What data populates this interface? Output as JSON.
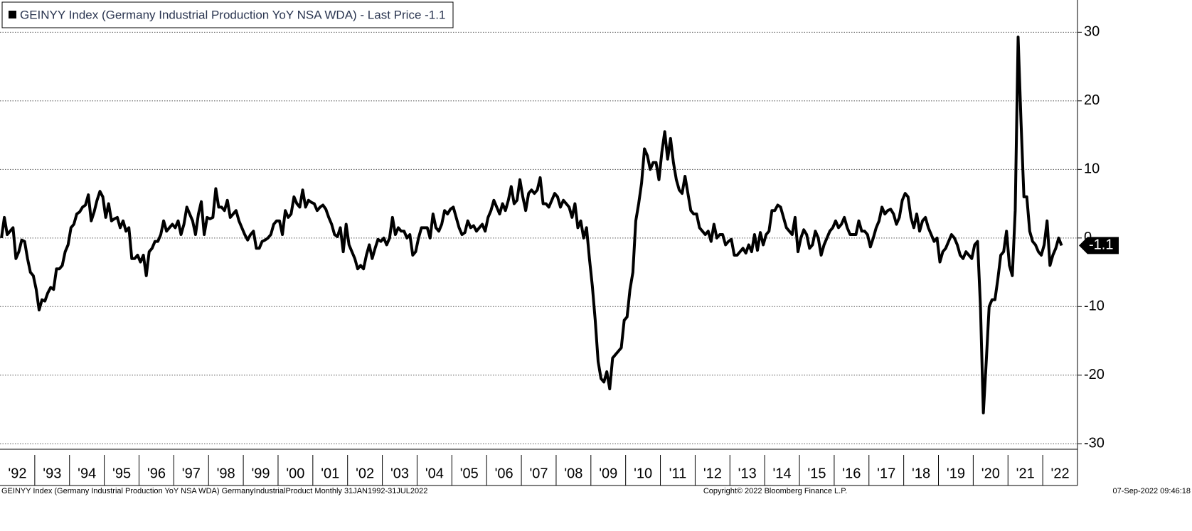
{
  "chart_data": {
    "type": "line",
    "title": "GEINYY Index (Germany Industrial Production YoY NSA WDA) - Last Price -1.1",
    "footer_left": "GEINYY Index (Germany Industrial Production YoY NSA WDA) GermanyIndustrialProduct  Monthly 31JAN1992-31JUL2022",
    "footer_center": "Copyright© 2022 Bloomberg Finance L.P.",
    "footer_right": "07-Sep-2022 09:46:18",
    "categories": [
      "'92",
      null,
      null,
      null,
      null,
      null,
      null,
      null,
      null,
      null,
      null,
      null,
      "'93",
      null,
      null,
      null,
      null,
      null,
      null,
      null,
      null,
      null,
      null,
      null,
      "'94",
      null,
      null,
      null,
      null,
      null,
      null,
      null,
      null,
      null,
      null,
      null,
      "'95",
      null,
      null,
      null,
      null,
      null,
      null,
      null,
      null,
      null,
      null,
      null,
      "'96",
      null,
      null,
      null,
      null,
      null,
      null,
      null,
      null,
      null,
      null,
      null,
      "'97",
      null,
      null,
      null,
      null,
      null,
      null,
      null,
      null,
      null,
      null,
      null,
      "'98",
      null,
      null,
      null,
      null,
      null,
      null,
      null,
      null,
      null,
      null,
      null,
      "'99",
      null,
      null,
      null,
      null,
      null,
      null,
      null,
      null,
      null,
      null,
      null,
      "'00",
      null,
      null,
      null,
      null,
      null,
      null,
      null,
      null,
      null,
      null,
      null,
      "'01",
      null,
      null,
      null,
      null,
      null,
      null,
      null,
      null,
      null,
      null,
      null,
      "'02",
      null,
      null,
      null,
      null,
      null,
      null,
      null,
      null,
      null,
      null,
      null,
      "'03",
      null,
      null,
      null,
      null,
      null,
      null,
      null,
      null,
      null,
      null,
      null,
      "'04",
      null,
      null,
      null,
      null,
      null,
      null,
      null,
      null,
      null,
      null,
      null,
      "'05",
      null,
      null,
      null,
      null,
      null,
      null,
      null,
      null,
      null,
      null,
      null,
      "'06",
      null,
      null,
      null,
      null,
      null,
      null,
      null,
      null,
      null,
      null,
      null,
      "'07",
      null,
      null,
      null,
      null,
      null,
      null,
      null,
      null,
      null,
      null,
      null,
      "'08",
      null,
      null,
      null,
      null,
      null,
      null,
      null,
      null,
      null,
      null,
      null,
      "'09",
      null,
      null,
      null,
      null,
      null,
      null,
      null,
      null,
      null,
      null,
      null,
      "'10",
      null,
      null,
      null,
      null,
      null,
      null,
      null,
      null,
      null,
      null,
      null,
      "'11",
      null,
      null,
      null,
      null,
      null,
      null,
      null,
      null,
      null,
      null,
      null,
      "'12",
      null,
      null,
      null,
      null,
      null,
      null,
      null,
      null,
      null,
      null,
      null,
      "'13",
      null,
      null,
      null,
      null,
      null,
      null,
      null,
      null,
      null,
      null,
      null,
      "'14",
      null,
      null,
      null,
      null,
      null,
      null,
      null,
      null,
      null,
      null,
      null,
      "'15",
      null,
      null,
      null,
      null,
      null,
      null,
      null,
      null,
      null,
      null,
      null,
      "'16",
      null,
      null,
      null,
      null,
      null,
      null,
      null,
      null,
      null,
      null,
      null,
      "'17",
      null,
      null,
      null,
      null,
      null,
      null,
      null,
      null,
      null,
      null,
      null,
      "'18",
      null,
      null,
      null,
      null,
      null,
      null,
      null,
      null,
      null,
      null,
      null,
      "'19",
      null,
      null,
      null,
      null,
      null,
      null,
      null,
      null,
      null,
      null,
      null,
      "'20",
      null,
      null,
      null,
      null,
      null,
      null,
      null,
      null,
      null,
      null,
      null,
      "'21",
      null,
      null,
      null,
      null,
      null,
      null,
      null,
      null,
      null,
      null,
      null,
      "'22",
      null,
      null,
      null,
      null,
      null,
      null
    ],
    "series": [
      {
        "name": "GEINYY Index (Germany Industrial Production YoY NSA WDA) - Last Price -1.1",
        "color": "#000000",
        "values": [
          0,
          3,
          0.5,
          1,
          1.5,
          -3,
          -2,
          -0.3,
          -0.5,
          -3,
          -5,
          -5.5,
          -7.5,
          -10.5,
          -9,
          -9.2,
          -8,
          -7.2,
          -7.5,
          -4.5,
          -4.5,
          -4,
          -2,
          -1,
          1.5,
          2,
          3.5,
          3.8,
          4.5,
          4.8,
          6.3,
          2.5,
          3.8,
          5.5,
          6.8,
          6,
          3,
          5,
          2.5,
          2.8,
          3,
          1.5,
          2.5,
          1,
          1.5,
          -3,
          -3,
          -2.5,
          -3.5,
          -2.5,
          -5.5,
          -2,
          -1.5,
          -0.5,
          -0.5,
          0.5,
          2.5,
          1,
          1.5,
          2,
          1.5,
          2.5,
          0.5,
          2,
          4.5,
          3.5,
          2.5,
          0.5,
          3.5,
          5.3,
          0.5,
          3,
          2.8,
          3,
          7.2,
          4.5,
          4.5,
          4,
          5.5,
          3,
          3.5,
          4,
          2.5,
          1.5,
          0.5,
          -0.3,
          0.5,
          1,
          -1.5,
          -1.5,
          -0.5,
          -0.3,
          0,
          0.5,
          2,
          2.5,
          2.5,
          0.5,
          4,
          3,
          3.5,
          6,
          5,
          4.5,
          7,
          4.5,
          5.5,
          5.2,
          5,
          4,
          4.5,
          4.8,
          4.2,
          3,
          2,
          0.5,
          0.2,
          1.5,
          -2,
          2,
          -1,
          -2,
          -3,
          -4.5,
          -4,
          -4.5,
          -2.5,
          -1,
          -3,
          -1.5,
          -0.2,
          -0.5,
          0,
          -1,
          0,
          3,
          0.5,
          1.5,
          1,
          1,
          0,
          0.5,
          -2.5,
          -2,
          0,
          1.5,
          1.5,
          1.5,
          0,
          3.5,
          1.5,
          1,
          2,
          4,
          3.5,
          4.2,
          4.5,
          3,
          1.5,
          0.5,
          0.8,
          2.5,
          1.5,
          1.8,
          1,
          1.5,
          2,
          1,
          3,
          4,
          5.5,
          4.5,
          3.5,
          5,
          4,
          5.5,
          7.5,
          5,
          5.5,
          8.5,
          6,
          4,
          6.5,
          7,
          6.5,
          7,
          8.8,
          5,
          5,
          4.5,
          5.5,
          6.5,
          6,
          4.5,
          5.5,
          5,
          4.5,
          3,
          5,
          1.5,
          2.5,
          0,
          1.5,
          -3,
          -7,
          -12,
          -18,
          -20.5,
          -21,
          -19.5,
          -22,
          -17.5,
          -17,
          -16.5,
          -16,
          -12,
          -11.5,
          -7.5,
          -5,
          2.5,
          5,
          8,
          13,
          12,
          10,
          11,
          11,
          8.5,
          12.5,
          15.5,
          11.5,
          14.5,
          11,
          8.5,
          7,
          6.5,
          9,
          6.5,
          4,
          3.5,
          3.5,
          1.5,
          1,
          0.5,
          1,
          -0.5,
          2,
          0,
          0.5,
          0.5,
          -1,
          -0.5,
          -0.2,
          -2.5,
          -2.5,
          -2,
          -1.5,
          -2.2,
          -1,
          -2,
          0.5,
          -1.8,
          0.8,
          -1,
          0.5,
          1,
          4,
          4,
          4.8,
          4.5,
          3,
          1.5,
          1,
          0.5,
          3,
          -2,
          0,
          1.2,
          0.5,
          -1.5,
          -1,
          1,
          0,
          -2.5,
          -1,
          0,
          1,
          1.5,
          2.5,
          1.5,
          2,
          3,
          1.5,
          0.5,
          0.5,
          0.5,
          2.5,
          1,
          1,
          0.5,
          -1.3,
          0,
          1.5,
          2.5,
          4.5,
          3.5,
          4,
          4.2,
          3.5,
          2,
          3,
          5.5,
          6.5,
          6,
          3,
          1.5,
          3.5,
          1,
          2.5,
          3,
          1.5,
          0.5,
          -0.5,
          0,
          -3.5,
          -2,
          -1.5,
          -0.5,
          0.5,
          0,
          -1,
          -2.5,
          -3,
          -2,
          -2.5,
          -3,
          -1,
          -0.5,
          -10,
          -25.5,
          -18,
          -10,
          -9,
          -9,
          -6,
          -2.5,
          -2,
          1,
          -4,
          -5.5,
          4,
          29.3,
          17,
          6,
          6,
          1,
          -0.5,
          -1,
          -2,
          -2.5,
          -1,
          2.5,
          -4,
          -2.5,
          -1.5,
          0,
          -1.1
        ]
      }
    ],
    "ylim": [
      -30.8,
      34.7
    ],
    "yticks": [
      30,
      20,
      10,
      0,
      -10,
      -20,
      -30
    ],
    "grid": true,
    "y_axis_side": "right"
  }
}
